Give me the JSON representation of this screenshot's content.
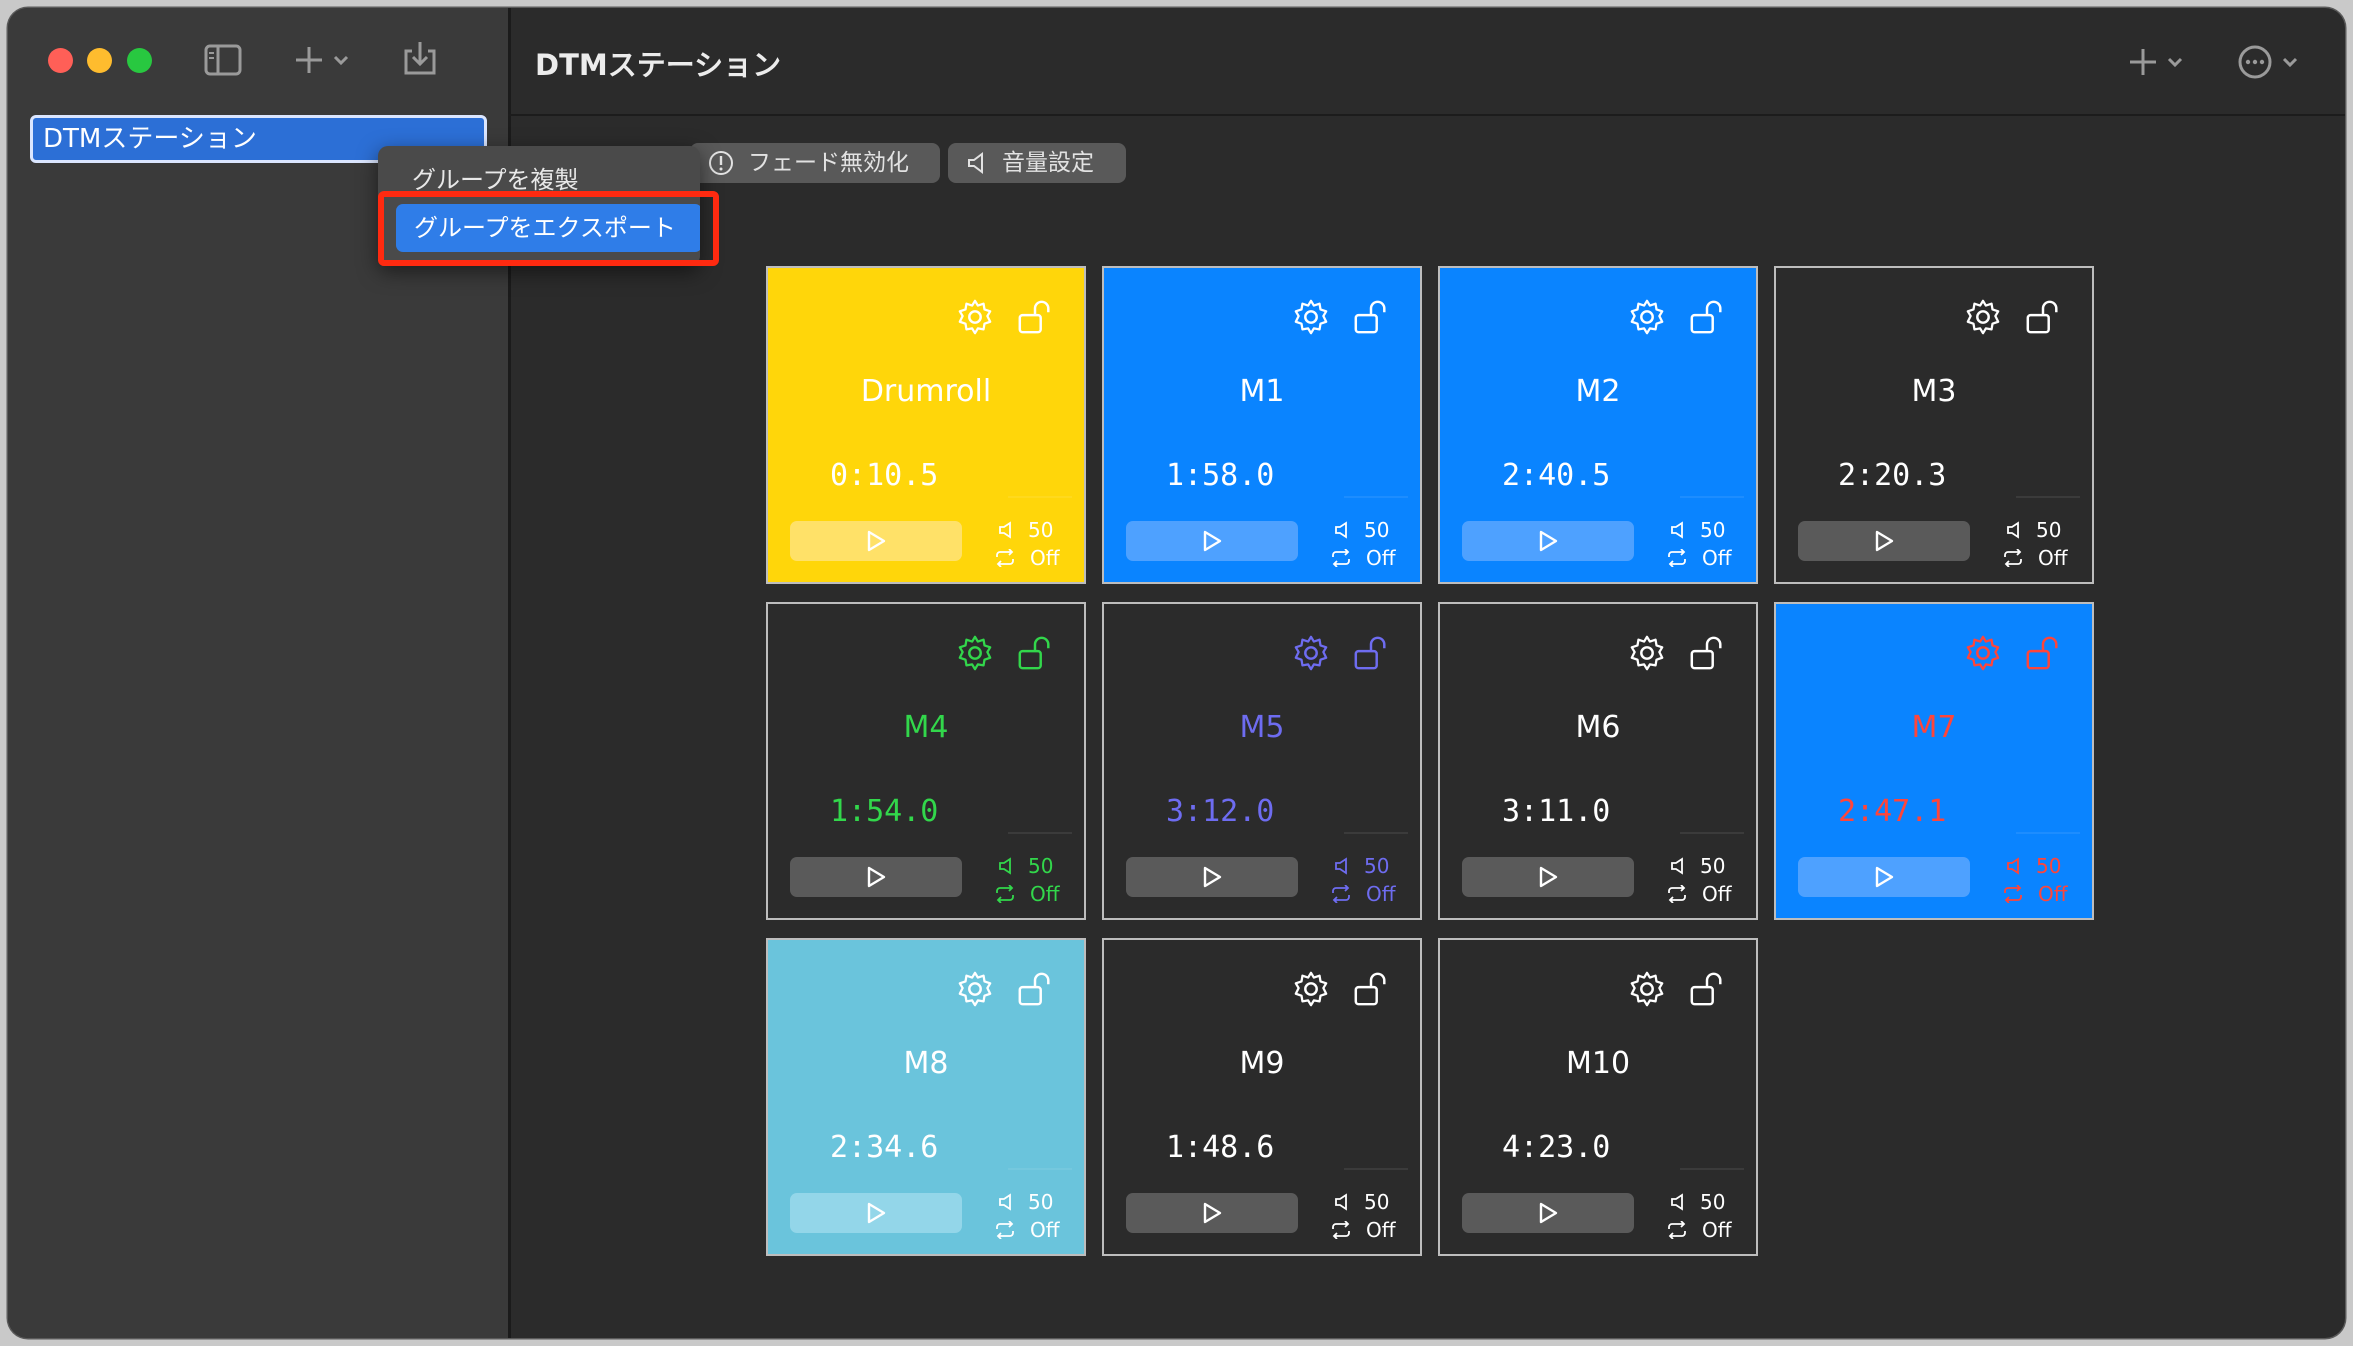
{
  "window": {
    "title": "DTMステーション"
  },
  "sidebar": {
    "selected_item": "DTMステーション",
    "context_menu": {
      "duplicate": "グループを複製",
      "export": "グループをエクスポート"
    }
  },
  "toolbar": {
    "fade": "フェード無効化",
    "volume": "音量設定"
  },
  "cards": [
    {
      "name": "Drumroll",
      "time": "0:10.5",
      "volume": "50",
      "loop": "Off",
      "bg": "#ffd60a",
      "fg": "#ffffff",
      "icon": "#ffffff",
      "btn": "#ffe168",
      "play": "#ffffff"
    },
    {
      "name": "M1",
      "time": "1:58.0",
      "volume": "50",
      "loop": "Off",
      "bg": "#0a84ff",
      "fg": "#ffffff",
      "icon": "#ffffff",
      "btn": "#4ea1ff",
      "play": "#ffffff"
    },
    {
      "name": "M2",
      "time": "2:40.5",
      "volume": "50",
      "loop": "Off",
      "bg": "#0a84ff",
      "fg": "#ffffff",
      "icon": "#ffffff",
      "btn": "#4ea1ff",
      "play": "#ffffff"
    },
    {
      "name": "M3",
      "time": "2:20.3",
      "volume": "50",
      "loop": "Off",
      "bg": "#2b2b2b",
      "fg": "#ffffff",
      "icon": "#ffffff",
      "btn": "#5a5a5a",
      "play": "#ffffff"
    },
    {
      "name": "M4",
      "time": "1:54.0",
      "volume": "50",
      "loop": "Off",
      "bg": "#2b2b2b",
      "fg": "#32d74b",
      "icon": "#32d74b",
      "btn": "#5a5a5a",
      "play": "#ffffff"
    },
    {
      "name": "M5",
      "time": "3:12.0",
      "volume": "50",
      "loop": "Off",
      "bg": "#2b2b2b",
      "fg": "#6e6cf0",
      "icon": "#6e6cf0",
      "btn": "#5a5a5a",
      "play": "#ffffff"
    },
    {
      "name": "M6",
      "time": "3:11.0",
      "volume": "50",
      "loop": "Off",
      "bg": "#2b2b2b",
      "fg": "#ffffff",
      "icon": "#ffffff",
      "btn": "#5a5a5a",
      "play": "#ffffff"
    },
    {
      "name": "M7",
      "time": "2:47.1",
      "volume": "50",
      "loop": "Off",
      "bg": "#0a84ff",
      "fg": "#ff453a",
      "icon": "#ff453a",
      "btn": "#4ea1ff",
      "play": "#ffffff"
    },
    {
      "name": "M8",
      "time": "2:34.6",
      "volume": "50",
      "loop": "Off",
      "bg": "#6ac4dc",
      "fg": "#ffffff",
      "icon": "#ffffff",
      "btn": "#93d6e9",
      "play": "#ffffff"
    },
    {
      "name": "M9",
      "time": "1:48.6",
      "volume": "50",
      "loop": "Off",
      "bg": "#2b2b2b",
      "fg": "#ffffff",
      "icon": "#ffffff",
      "btn": "#5a5a5a",
      "play": "#ffffff"
    },
    {
      "name": "M10",
      "time": "4:23.0",
      "volume": "50",
      "loop": "Off",
      "bg": "#2b2b2b",
      "fg": "#ffffff",
      "icon": "#ffffff",
      "btn": "#5a5a5a",
      "play": "#ffffff"
    }
  ]
}
